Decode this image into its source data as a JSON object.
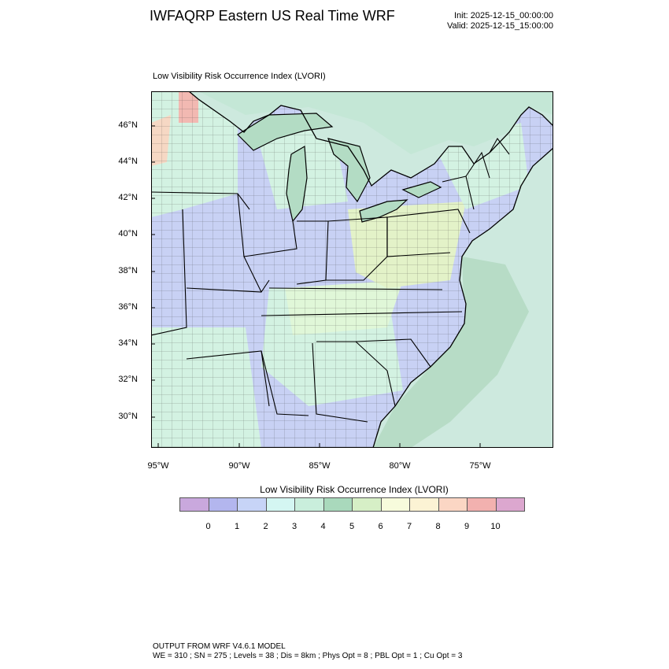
{
  "header": {
    "title": "IWFAQRP Eastern US Real Time WRF",
    "init": "Init: 2025-12-15_00:00:00",
    "valid": "Valid: 2025-12-15_15:00:00"
  },
  "map": {
    "subtitle": "Low Visibility Risk Occurrence Index   (LVORI)",
    "lat_labels": [
      "46°N",
      "44°N",
      "42°N",
      "40°N",
      "38°N",
      "36°N",
      "34°N",
      "32°N",
      "30°N"
    ],
    "lon_labels": [
      "95°W",
      "90°W",
      "85°W",
      "80°W",
      "75°W"
    ],
    "colors": {
      "ocean": "#cde9de",
      "ocean_shelf": "#b7dcc6",
      "lake": "#b3dcc4",
      "land_low": "#c8d1f4",
      "land_mid": "#d3f2e2",
      "land_high": "#e3f2c8",
      "hotspot": "#f2b9b2"
    }
  },
  "legend": {
    "title": "Low Visibility Risk Occurrence Index  (LVORI)",
    "colors": [
      "#c9a8dd",
      "#b3b6ee",
      "#c7d4f7",
      "#d4f6f2",
      "#c9eedc",
      "#a9d9bc",
      "#d6efc6",
      "#f7fbdc",
      "#fcf3d4",
      "#fbd6c4",
      "#f2b1af",
      "#dca7cf"
    ],
    "labels": [
      "0",
      "1",
      "2",
      "3",
      "4",
      "5",
      "6",
      "7",
      "8",
      "9",
      "10"
    ]
  },
  "footer": {
    "line1": "OUTPUT FROM WRF V4.6.1 MODEL",
    "line2": "WE = 310 ; SN = 275 ; Levels = 38 ; Dis = 8km ; Phys Opt = 8 ; PBL Opt = 1 ; Cu Opt = 3"
  }
}
